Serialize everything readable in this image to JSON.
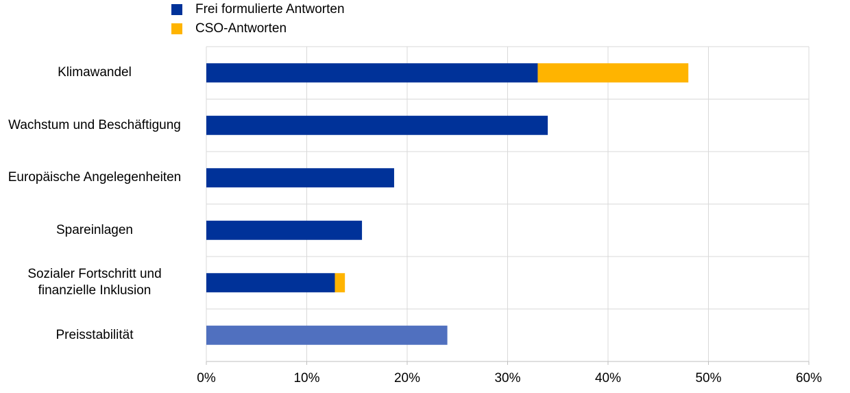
{
  "chart_data": {
    "type": "stacked-barh",
    "categories": [
      "Klimawandel",
      "Wachstum und Beschäftigung",
      "Europäische Angelegenheiten",
      "Spareinlagen",
      "Sozialer Fortschritt und\nfinanzielle Inklusion",
      "Preisstabilität"
    ],
    "series": [
      {
        "name": "Frei formulierte Antworten",
        "color": "#003299",
        "colors": [
          "#003299",
          "#003299",
          "#003299",
          "#003299",
          "#003299",
          "#5070bf"
        ],
        "values": [
          33,
          34,
          18.7,
          15.5,
          12.8,
          24
        ]
      },
      {
        "name": "CSO-Antworten",
        "color": "#ffb400",
        "values": [
          15,
          null,
          null,
          null,
          1,
          null
        ]
      }
    ],
    "xlim": [
      0,
      60
    ],
    "xticks": [
      {
        "value": 0,
        "label": "0%"
      },
      {
        "value": 10,
        "label": "10%"
      },
      {
        "value": 20,
        "label": "20%"
      },
      {
        "value": 30,
        "label": "30%"
      },
      {
        "value": 40,
        "label": "40%"
      },
      {
        "value": 50,
        "label": "50%"
      },
      {
        "value": 60,
        "label": "60%"
      }
    ],
    "grid": true,
    "legend": "top-left"
  }
}
